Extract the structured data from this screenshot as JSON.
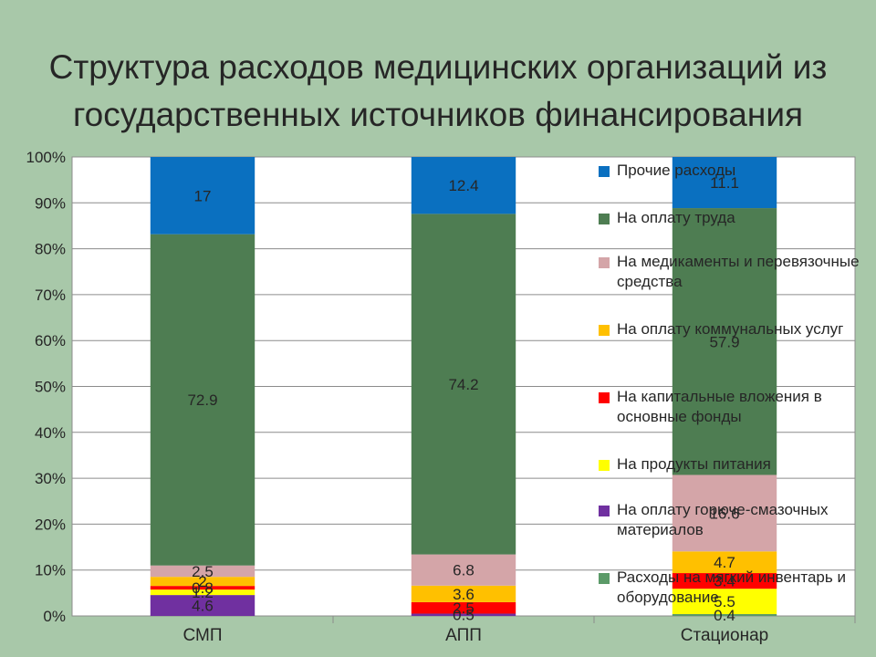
{
  "slide": {
    "title": "Структура расходов медицинских организаций из государственных источников финансирования"
  },
  "chart_data": {
    "type": "bar",
    "stacked": true,
    "percent": true,
    "categories": [
      "СМП",
      "АПП",
      "Стационар"
    ],
    "ylim": [
      0,
      100
    ],
    "yticks": [
      "0%",
      "10%",
      "20%",
      "30%",
      "40%",
      "50%",
      "60%",
      "70%",
      "80%",
      "90%",
      "100%"
    ],
    "grid": true,
    "legend_position": "right",
    "series": [
      {
        "name": "Расходы на мягкий инвентарь и оборудование",
        "color": "#5b9a68",
        "values": [
          0.0,
          0.0,
          0.4
        ],
        "labels": [
          "",
          "",
          "0.4"
        ]
      },
      {
        "name": "На оплату горюче-смазочных материалов",
        "color": "#7030a0",
        "values": [
          4.6,
          0.5,
          0.0
        ],
        "labels": [
          "4.6",
          "0.5",
          ""
        ]
      },
      {
        "name": "На продукты питания",
        "color": "#ffff00",
        "values": [
          1.2,
          0.0,
          5.5
        ],
        "labels": [
          "1.2",
          "",
          "5.5"
        ]
      },
      {
        "name": "На капитальные вложения в основные фонды",
        "color": "#ff0000",
        "values": [
          0.8,
          2.5,
          3.4
        ],
        "labels": [
          "0.8",
          "2.5",
          "3.4"
        ]
      },
      {
        "name": "На оплату коммунальных услуг",
        "color": "#ffc000",
        "values": [
          2.0,
          3.6,
          4.7
        ],
        "labels": [
          "2",
          "3.6",
          "4.7"
        ]
      },
      {
        "name": "На медикаменты и перевязочные средства",
        "color": "#d4a5a8",
        "values": [
          2.5,
          6.8,
          16.6
        ],
        "labels": [
          "2.5",
          "6.8",
          "16.6"
        ]
      },
      {
        "name": "На оплату труда",
        "color": "#4e7d52",
        "values": [
          72.9,
          74.2,
          57.9
        ],
        "labels": [
          "72.9",
          "74.2",
          "57.9"
        ]
      },
      {
        "name": "Прочие расходы",
        "color": "#0a70c0",
        "values": [
          17.0,
          12.4,
          11.1
        ],
        "labels": [
          "17",
          "12.4",
          "11.1"
        ]
      }
    ],
    "legend": [
      {
        "name": "Прочие расходы",
        "color": "#0a70c0"
      },
      {
        "name": "На оплату труда",
        "color": "#4e7d52"
      },
      {
        "name": "На медикаменты и перевязочные средства",
        "color": "#d4a5a8"
      },
      {
        "name": "На оплату коммунальных услуг",
        "color": "#ffc000"
      },
      {
        "name": "На капитальные вложения в основные фонды",
        "color": "#ff0000"
      },
      {
        "name": "На продукты питания",
        "color": "#ffff00"
      },
      {
        "name": "На оплату горюче-смазочных материалов",
        "color": "#7030a0"
      },
      {
        "name": "Расходы на мягкий инвентарь и оборудование",
        "color": "#5b9a68"
      }
    ]
  }
}
